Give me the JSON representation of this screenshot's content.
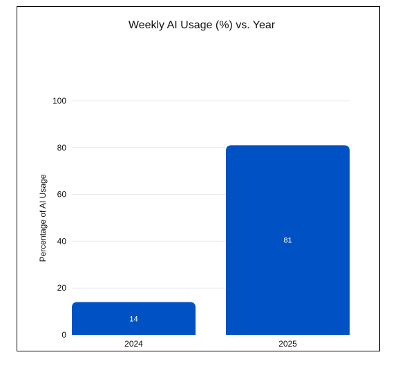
{
  "chart_data": {
    "type": "bar",
    "title": "Weekly AI Usage (%) vs. Year",
    "xlabel": "",
    "ylabel": "Percentage of AI Usage",
    "categories": [
      "2024",
      "2025"
    ],
    "values": [
      14,
      81
    ],
    "data_labels": [
      "14",
      "81"
    ],
    "ylim": [
      0,
      100
    ],
    "yticks": [
      0,
      20,
      40,
      60,
      80,
      100
    ],
    "grid": true,
    "legend": "none",
    "bar_color": "#0052c4"
  }
}
